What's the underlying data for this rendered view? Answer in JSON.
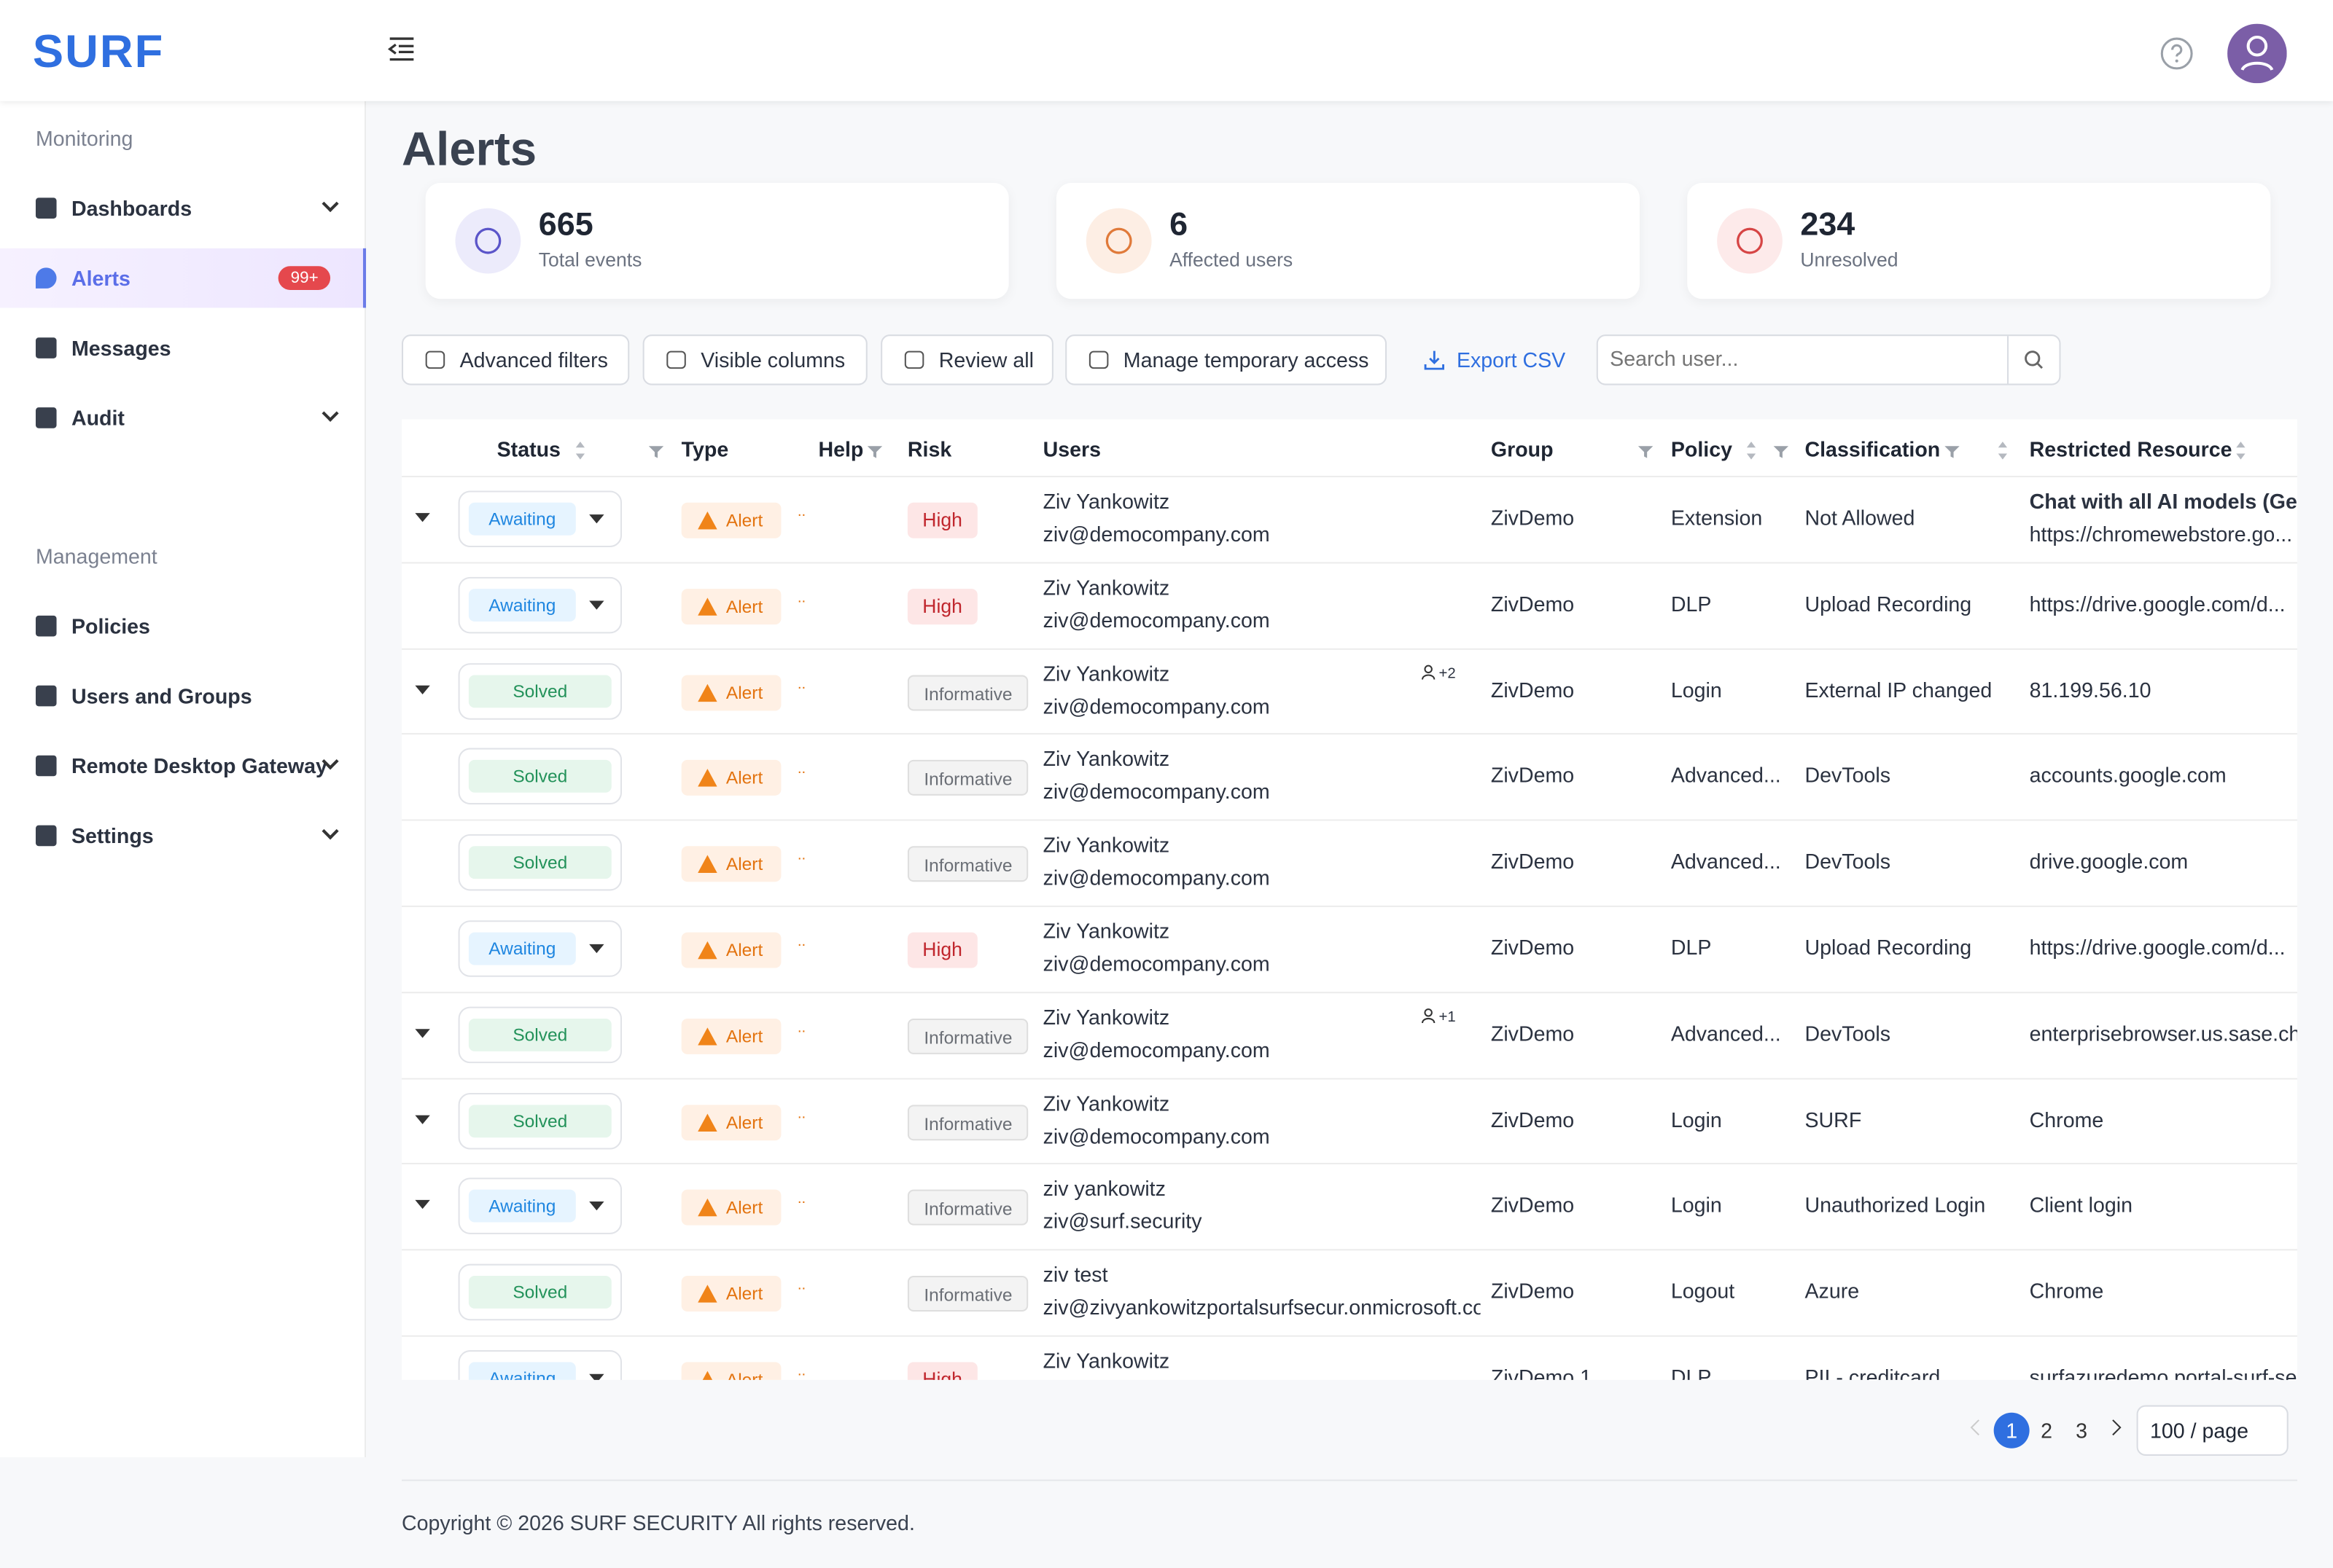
{
  "header": {
    "logo": "SURF"
  },
  "sidebar": {
    "sections": [
      {
        "title": "Monitoring",
        "items": [
          {
            "label": "Dashboards",
            "expandable": true
          },
          {
            "label": "Alerts",
            "badge": "99+",
            "active": true
          },
          {
            "label": "Messages"
          },
          {
            "label": "Audit",
            "expandable": true
          }
        ]
      },
      {
        "title": "Management",
        "items": [
          {
            "label": "Policies"
          },
          {
            "label": "Users and Groups"
          },
          {
            "label": "Remote Desktop Gateway",
            "expandable": true
          },
          {
            "label": "Settings",
            "expandable": true
          }
        ]
      }
    ]
  },
  "page": {
    "title": "Alerts"
  },
  "stats": [
    {
      "value": "665",
      "label": "Total events"
    },
    {
      "value": "6",
      "label": "Affected users"
    },
    {
      "value": "234",
      "label": "Unresolved"
    }
  ],
  "toolbar": {
    "buttons": [
      "Advanced filters",
      "Visible columns",
      "Review all",
      "Manage temporary access"
    ],
    "export": "Export CSV",
    "search_placeholder": "Search user..."
  },
  "table": {
    "columns": [
      "Status",
      "Type",
      "Help",
      "Risk",
      "Users",
      "Group",
      "Policy",
      "Classification",
      "Restricted Resource"
    ],
    "rows": [
      {
        "expand": true,
        "status": "Awaiting",
        "type": "Alert",
        "help": "..",
        "risk": "High",
        "user": "Ziv Yankowitz",
        "email": "ziv@democompany.com",
        "group": "ZivDemo",
        "policy": "Extension",
        "classification": "Not Allowed",
        "resource_title": "Chat with all AI models (Gemi",
        "resource": "https://chromewebstore.go..."
      },
      {
        "expand": false,
        "status": "Awaiting",
        "type": "Alert",
        "help": "..",
        "risk": "High",
        "user": "Ziv Yankowitz",
        "email": "ziv@democompany.com",
        "group": "ZivDemo",
        "policy": "DLP",
        "classification": "Upload Recording",
        "resource": "https://drive.google.com/d..."
      },
      {
        "expand": true,
        "status": "Solved",
        "type": "Alert",
        "help": "..",
        "risk": "Informative",
        "user": "Ziv Yankowitz",
        "email": "ziv@democompany.com",
        "extra": "+2",
        "group": "ZivDemo",
        "policy": "Login",
        "classification": "External IP changed",
        "resource": "81.199.56.10"
      },
      {
        "expand": false,
        "status": "Solved",
        "type": "Alert",
        "help": "..",
        "risk": "Informative",
        "user": "Ziv Yankowitz",
        "email": "ziv@democompany.com",
        "group": "ZivDemo",
        "policy": "Advanced...",
        "classification": "DevTools",
        "resource": "accounts.google.com"
      },
      {
        "expand": false,
        "status": "Solved",
        "type": "Alert",
        "help": "..",
        "risk": "Informative",
        "user": "Ziv Yankowitz",
        "email": "ziv@democompany.com",
        "group": "ZivDemo",
        "policy": "Advanced...",
        "classification": "DevTools",
        "resource": "drive.google.com"
      },
      {
        "expand": false,
        "status": "Awaiting",
        "type": "Alert",
        "help": "..",
        "risk": "High",
        "user": "Ziv Yankowitz",
        "email": "ziv@democompany.com",
        "group": "ZivDemo",
        "policy": "DLP",
        "classification": "Upload Recording",
        "resource": "https://drive.google.com/d..."
      },
      {
        "expand": true,
        "status": "Solved",
        "type": "Alert",
        "help": "..",
        "risk": "Informative",
        "user": "Ziv Yankowitz",
        "email": "ziv@democompany.com",
        "extra": "+1",
        "group": "ZivDemo",
        "policy": "Advanced...",
        "classification": "DevTools",
        "resource": "enterprisebrowser.us.sase.ch"
      },
      {
        "expand": true,
        "status": "Solved",
        "type": "Alert",
        "help": "..",
        "risk": "Informative",
        "user": "Ziv Yankowitz",
        "email": "ziv@democompany.com",
        "group": "ZivDemo",
        "policy": "Login",
        "classification": "SURF",
        "resource": "Chrome"
      },
      {
        "expand": true,
        "status": "Awaiting",
        "type": "Alert",
        "help": "..",
        "risk": "Informative",
        "user": "ziv yankowitz",
        "email": "ziv@surf.security",
        "group": "ZivDemo",
        "policy": "Login",
        "classification": "Unauthorized Login",
        "resource": "Client login"
      },
      {
        "expand": false,
        "status": "Solved",
        "type": "Alert",
        "help": "..",
        "risk": "Informative",
        "user": "ziv test",
        "email": "ziv@zivyankowitzportalsurfsecur.onmicrosoft.com",
        "group": "ZivDemo",
        "policy": "Logout",
        "classification": "Azure",
        "resource": "Chrome"
      },
      {
        "expand": false,
        "status": "Awaiting",
        "type": "Alert",
        "help": "..",
        "risk": "High",
        "user": "Ziv Yankowitz",
        "group": "ZivDemo 1",
        "policy": "DLP",
        "classification": "PII - creditcard",
        "resource": "surfazuredemo.portal-surf-se"
      }
    ]
  },
  "pagination": {
    "pages": [
      "1",
      "2",
      "3"
    ],
    "page_size": "100 / page"
  },
  "footer": {
    "prefix": "Copyright © 2026",
    "company": "SURF SECURITY",
    "suffix": "All rights reserved."
  }
}
